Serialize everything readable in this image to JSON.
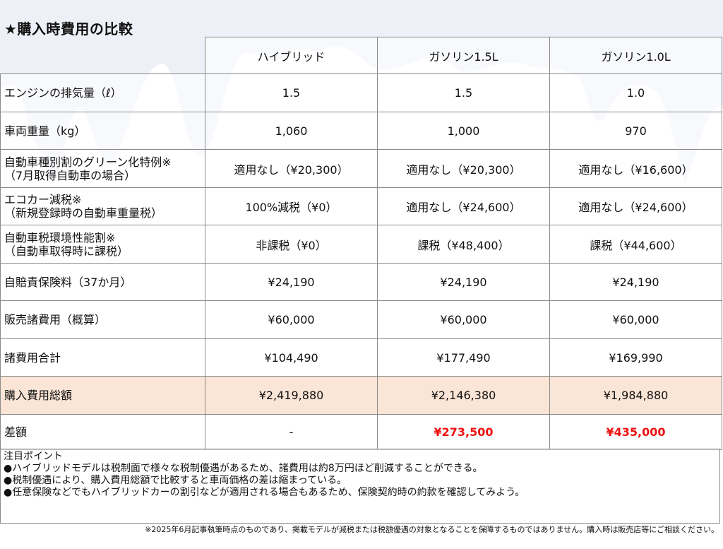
{
  "title": "★購入時費用の比較",
  "columns": [
    "ハイブリッド",
    "ガソリン1.5L",
    "ガソリン1.0L"
  ],
  "rows": [
    {
      "label": [
        "エンジンの排気量（ℓ）"
      ],
      "values": [
        "1.5",
        "1.5",
        "1.0"
      ]
    },
    {
      "label": [
        "車両重量（kg）"
      ],
      "values": [
        "1,060",
        "1,000",
        "970"
      ]
    },
    {
      "label": [
        "自動車種別割のグリーン化特例※",
        "（7月取得自動車の場合）"
      ],
      "values": [
        "適用なし（¥20,300）",
        "適用なし（¥20,300）",
        "適用なし（¥16,600）"
      ]
    },
    {
      "label": [
        "エコカー減税※",
        "（新規登録時の自動車重量税）"
      ],
      "values": [
        "100%減税（¥0）",
        "適用なし（¥24,600）",
        "適用なし（¥24,600）"
      ]
    },
    {
      "label": [
        "自動車税環境性能割※",
        "（自動車取得時に課税）"
      ],
      "values": [
        "非課税（¥0）",
        "課税（¥48,400）",
        "課税（¥44,600）"
      ]
    },
    {
      "label": [
        "自賠責保険料（37か月）"
      ],
      "values": [
        "¥24,190",
        "¥24,190",
        "¥24,190"
      ]
    },
    {
      "label": [
        "販売諸費用（概算）"
      ],
      "values": [
        "¥60,000",
        "¥60,000",
        "¥60,000"
      ]
    },
    {
      "label": [
        "諸費用合計"
      ],
      "values": [
        "¥104,490",
        "¥177,490",
        "¥169,990"
      ]
    },
    {
      "label": [
        "購入費用総額"
      ],
      "values": [
        "¥2,419,880",
        "¥2,146,380",
        "¥1,984,880"
      ]
    },
    {
      "label": [
        "差額"
      ],
      "values": [
        "-",
        "¥273,500",
        "¥435,000"
      ]
    }
  ],
  "notes": {
    "heading": "注目ポイント",
    "items": [
      "●ハイブリッドモデルは税制面で様々な税制優遇があるため、諸費用は約8万円ほど削減することができる。",
      "●税制優遇により、購入費用総額で比較すると車両価格の差は縮まっている。",
      "●任意保険などでもハイブリッドカーの割引などが適用される場合もあるため、保険契約時の約款を確認してみよう。"
    ]
  },
  "disclaimer": "※2025年6月記事執筆時点のものであり、掲載モデルが減税または税額優遇の対象となることを保障するものではありません。購入時は販売店等にご相談ください。",
  "colors": {
    "total_row_bg": "#fbe5d6",
    "diff_text": "#ee1111",
    "border": "#8a8a8a"
  }
}
